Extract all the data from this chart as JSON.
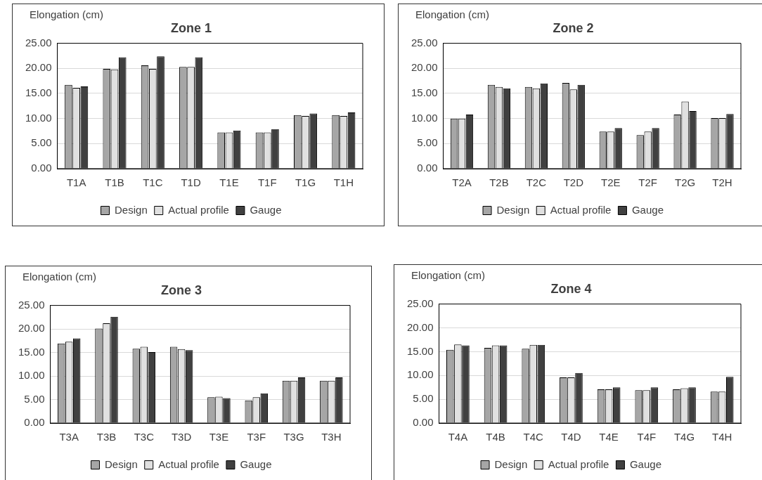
{
  "chart_data": [
    {
      "type": "bar",
      "title": "Zone 1",
      "ylabel": "Elongation (cm)",
      "categories": [
        "T1A",
        "T1B",
        "T1C",
        "T1D",
        "T1E",
        "T1F",
        "T1G",
        "T1H"
      ],
      "series": [
        {
          "name": "Design",
          "color": "#a6a6a6",
          "values": [
            16.7,
            19.9,
            20.6,
            20.3,
            7.2,
            7.2,
            10.7,
            10.7
          ]
        },
        {
          "name": "Actual profile",
          "color": "#e0e0e0",
          "values": [
            16.1,
            19.8,
            19.9,
            20.3,
            7.2,
            7.2,
            10.5,
            10.5
          ]
        },
        {
          "name": "Gauge",
          "color": "#404040",
          "values": [
            16.4,
            22.2,
            22.4,
            22.2,
            7.6,
            7.9,
            11.0,
            11.2
          ]
        }
      ],
      "ylim": [
        0,
        25
      ],
      "yticks": [
        {
          "value": 0,
          "label": "0.00"
        },
        {
          "value": 5,
          "label": "5.00"
        },
        {
          "value": 10,
          "label": "10.00"
        },
        {
          "value": 15,
          "label": "15.00"
        },
        {
          "value": 20,
          "label": "20.00"
        },
        {
          "value": 25,
          "label": "25.00"
        }
      ],
      "grid": "y",
      "legend": "bottom"
    },
    {
      "type": "bar",
      "title": "Zone 2",
      "ylabel": "Elongation (cm)",
      "categories": [
        "T2A",
        "T2B",
        "T2C",
        "T2D",
        "T2E",
        "T2F",
        "T2G",
        "T2H"
      ],
      "series": [
        {
          "name": "Design",
          "color": "#a6a6a6",
          "values": [
            10.0,
            16.7,
            16.3,
            17.1,
            7.4,
            6.7,
            10.8,
            10.1
          ]
        },
        {
          "name": "Actual profile",
          "color": "#e0e0e0",
          "values": [
            10.0,
            16.3,
            16.0,
            15.8,
            7.4,
            7.4,
            13.4,
            10.1
          ]
        },
        {
          "name": "Gauge",
          "color": "#404040",
          "values": [
            10.8,
            16.0,
            17.0,
            16.7,
            8.1,
            8.1,
            11.5,
            10.9
          ]
        }
      ],
      "ylim": [
        0,
        25
      ],
      "yticks": [
        {
          "value": 0,
          "label": "0.00"
        },
        {
          "value": 5,
          "label": "5.00"
        },
        {
          "value": 10,
          "label": "10.00"
        },
        {
          "value": 15,
          "label": "15.00"
        },
        {
          "value": 20,
          "label": "20.00"
        },
        {
          "value": 25,
          "label": "25.00"
        }
      ],
      "grid": "y",
      "legend": "bottom"
    },
    {
      "type": "bar",
      "title": "Zone 3",
      "ylabel": "Elongation (cm)",
      "categories": [
        "T3A",
        "T3B",
        "T3C",
        "T3D",
        "T3E",
        "T3F",
        "T3G",
        "T3H"
      ],
      "series": [
        {
          "name": "Design",
          "color": "#a6a6a6",
          "values": [
            16.9,
            20.1,
            15.8,
            16.2,
            5.5,
            4.8,
            9.0,
            9.0
          ]
        },
        {
          "name": "Actual profile",
          "color": "#e0e0e0",
          "values": [
            17.3,
            21.2,
            16.2,
            15.7,
            5.6,
            5.5,
            9.0,
            9.0
          ]
        },
        {
          "name": "Gauge",
          "color": "#404040",
          "values": [
            18.0,
            22.6,
            15.1,
            15.5,
            5.3,
            6.3,
            9.7,
            9.7
          ]
        }
      ],
      "ylim": [
        0,
        25
      ],
      "yticks": [
        {
          "value": 0,
          "label": "0.00"
        },
        {
          "value": 5,
          "label": "5.00"
        },
        {
          "value": 10,
          "label": "10.00"
        },
        {
          "value": 15,
          "label": "15.00"
        },
        {
          "value": 20,
          "label": "20.00"
        },
        {
          "value": 25,
          "label": "25.00"
        }
      ],
      "grid": "y",
      "legend": "bottom"
    },
    {
      "type": "bar",
      "title": "Zone 4",
      "ylabel": "Elongation (cm)",
      "categories": [
        "T4A",
        "T4B",
        "T4C",
        "T4D",
        "T4E",
        "T4F",
        "T4G",
        "T4H"
      ],
      "series": [
        {
          "name": "Design",
          "color": "#a6a6a6",
          "values": [
            15.4,
            15.8,
            15.6,
            9.6,
            7.1,
            6.9,
            7.1,
            6.6
          ]
        },
        {
          "name": "Actual profile",
          "color": "#e0e0e0",
          "values": [
            16.5,
            16.3,
            16.4,
            9.6,
            7.1,
            6.9,
            7.3,
            6.6
          ]
        },
        {
          "name": "Gauge",
          "color": "#404040",
          "values": [
            16.3,
            16.3,
            16.4,
            10.5,
            7.5,
            7.5,
            7.5,
            9.7
          ]
        }
      ],
      "ylim": [
        0,
        25
      ],
      "yticks": [
        {
          "value": 0,
          "label": "0.00"
        },
        {
          "value": 5,
          "label": "5.00"
        },
        {
          "value": 10,
          "label": "10.00"
        },
        {
          "value": 15,
          "label": "15.00"
        },
        {
          "value": 20,
          "label": "20.00"
        },
        {
          "value": 25,
          "label": "25.00"
        }
      ],
      "grid": "y",
      "legend": "bottom"
    }
  ]
}
